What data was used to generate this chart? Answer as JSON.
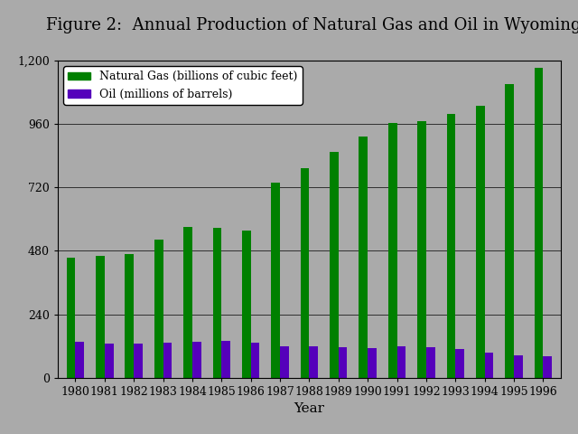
{
  "years": [
    1980,
    1981,
    1982,
    1983,
    1984,
    1985,
    1986,
    1987,
    1988,
    1989,
    1990,
    1991,
    1992,
    1993,
    1994,
    1995,
    1996
  ],
  "natural_gas": [
    455,
    460,
    467,
    522,
    570,
    568,
    558,
    740,
    792,
    855,
    913,
    965,
    972,
    1000,
    1030,
    1110,
    1175
  ],
  "oil": [
    135,
    130,
    128,
    132,
    135,
    138,
    133,
    120,
    118,
    115,
    112,
    118,
    115,
    108,
    95,
    85,
    80
  ],
  "gas_color": "#008000",
  "oil_color": "#5500BB",
  "bg_color": "#AAAAAA",
  "title": "Figure 2:  Annual Production of Natural Gas and Oil in Wyoming",
  "xlabel": "Year",
  "ylim": [
    0,
    1200
  ],
  "yticks": [
    0,
    240,
    480,
    720,
    960,
    1200
  ],
  "ytick_labels": [
    "0",
    "240",
    "480",
    "720",
    "960",
    "1,200"
  ],
  "legend_gas": "Natural Gas (billions of cubic feet)",
  "legend_oil": "Oil (millions of barrels)",
  "title_fontsize": 13,
  "axis_fontsize": 9,
  "legend_fontsize": 9
}
